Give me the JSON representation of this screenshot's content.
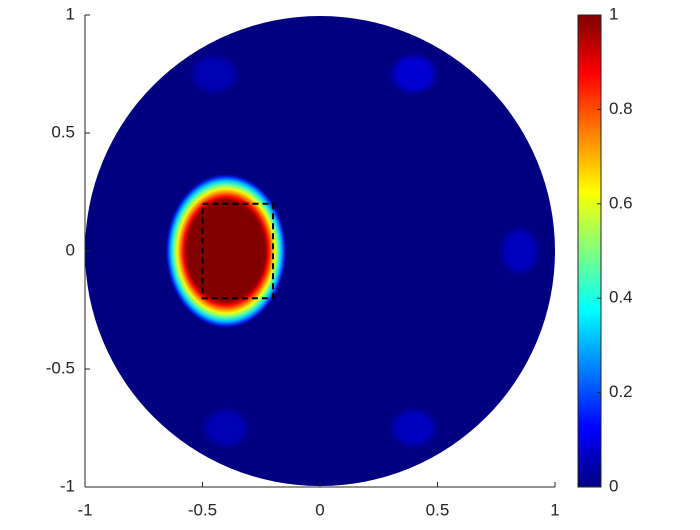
{
  "chart_data": {
    "type": "field",
    "xlim": [
      -1,
      1
    ],
    "ylim": [
      -1,
      1
    ],
    "xticks": [
      -1,
      -0.5,
      0,
      0.5,
      1
    ],
    "yticks": [
      -1,
      -0.5,
      0,
      0.5,
      1
    ],
    "domain_radius": 1,
    "colormap": "jet",
    "clim": [
      0,
      1
    ],
    "cticks": [
      0,
      0.2,
      0.4,
      0.6,
      0.8,
      1
    ],
    "blobs": [
      {
        "x": -0.4,
        "y": 0,
        "peak": 1,
        "rx": 0.26,
        "ry": 0.33
      },
      {
        "x": -0.45,
        "y": 0.75,
        "peak": 0.05,
        "rx": 0.12,
        "ry": 0.1
      },
      {
        "x": 0.4,
        "y": 0.75,
        "peak": 0.08,
        "rx": 0.12,
        "ry": 0.1
      },
      {
        "x": 0.85,
        "y": 0,
        "peak": 0.06,
        "rx": 0.1,
        "ry": 0.12
      },
      {
        "x": 0.4,
        "y": -0.75,
        "peak": 0.06,
        "rx": 0.12,
        "ry": 0.1
      },
      {
        "x": -0.4,
        "y": -0.75,
        "peak": 0.05,
        "rx": 0.12,
        "ry": 0.1
      }
    ],
    "box": {
      "x": [
        -0.5,
        -0.2
      ],
      "y": [
        -0.2,
        0.2
      ]
    }
  }
}
